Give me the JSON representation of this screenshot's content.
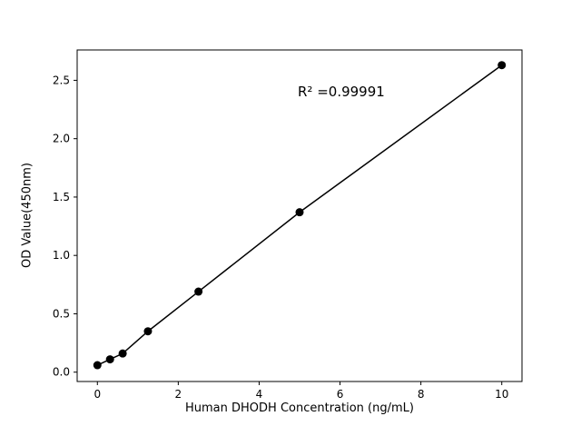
{
  "chart_data": {
    "type": "scatter",
    "x": [
      0,
      0.3125,
      0.625,
      1.25,
      2.5,
      5,
      10
    ],
    "y": [
      0.06,
      0.11,
      0.16,
      0.35,
      0.69,
      1.37,
      2.63
    ],
    "series_note": "single series, linear standard curve with fitted line through points",
    "title": "",
    "xlabel": "Human DHODH Concentration (ng/mL)",
    "ylabel": "OD Value(450nm)",
    "annotation": "R² =0.99991",
    "xlim": [
      -0.5,
      10.5
    ],
    "ylim": [
      -0.08,
      2.76
    ],
    "xticks": [
      0,
      2,
      4,
      6,
      8,
      10
    ],
    "xticklabels": [
      "0",
      "2",
      "4",
      "6",
      "8",
      "10"
    ],
    "yticks": [
      0.0,
      0.5,
      1.0,
      1.5,
      2.0,
      2.5
    ],
    "yticklabels": [
      "0.0",
      "0.5",
      "1.0",
      "1.5",
      "2.0",
      "2.5"
    ],
    "grid": false,
    "legend": null,
    "line_color": "#000000",
    "marker_color": "#000000",
    "axis_color": "#000000",
    "background_color": "#ffffff"
  }
}
